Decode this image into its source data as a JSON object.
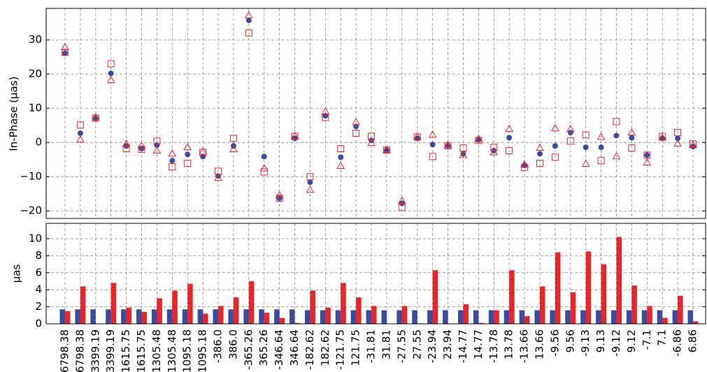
{
  "chart_data": [
    {
      "type": "scatter",
      "y_label": "In-Phase (μas)",
      "grid": true,
      "ylim": [
        -22.2,
        39.2
      ],
      "yticks": [
        {
          "value": -20,
          "label": "−20"
        },
        {
          "value": -10,
          "label": "−10"
        },
        0,
        10,
        20,
        30
      ],
      "series": [
        {
          "marker": "circle",
          "color": "#3a4ba0",
          "values": [
            26.1,
            2.7,
            7.1,
            20.2,
            -1,
            -1.8,
            -0.8,
            -5.3,
            -3.5,
            -4.1,
            -9.8,
            -1,
            35.7,
            -4.1,
            -16.3,
            1.2,
            -11.6,
            7.8,
            -4.3,
            4.7,
            0.6,
            -2.2,
            -17.8,
            1.2,
            -0.6,
            -1,
            -3.3,
            0.8,
            -2.4,
            1.4,
            -6.7,
            -3.3,
            -1,
            2.9,
            -1.4,
            -1.4,
            2,
            1.4,
            -3.7,
            1.2,
            1.2,
            -1.2
          ]
        },
        {
          "marker": "square",
          "color": "#e8262a",
          "values": [
            26.3,
            5.1,
            7.1,
            23,
            -1.8,
            -2,
            0.4,
            -7.1,
            -6.1,
            -2.9,
            -8.4,
            1.2,
            32,
            -8.6,
            -16.3,
            1.8,
            -10,
            7.3,
            -1.8,
            2.7,
            1.8,
            -2.2,
            -19,
            1.6,
            -4.1,
            -1,
            -1.6,
            0.6,
            -1.4,
            -2.4,
            -7.3,
            -6.1,
            -4.3,
            0.4,
            2.2,
            -5.3,
            6.1,
            -1.6,
            -3.7,
            1.8,
            2.9,
            -0.4
          ]
        },
        {
          "marker": "triangle",
          "color": "#e8262a",
          "values": [
            27.8,
            0.8,
            7.3,
            18.2,
            -0.4,
            -1,
            -2.4,
            -3.3,
            -1.4,
            -2.7,
            -10.4,
            -2,
            37.1,
            -7.6,
            -15.5,
            1.8,
            -13.9,
            9,
            -6.9,
            5.9,
            -0.2,
            -2.2,
            -17.1,
            1.6,
            2.2,
            -0.8,
            -3.7,
            1,
            -2.9,
            3.9,
            -6.5,
            -1.6,
            4.1,
            3.9,
            -6.3,
            1.6,
            -4.1,
            2.9,
            -5.9,
            1.4,
            -0.4,
            -0.8
          ]
        }
      ]
    },
    {
      "type": "bar",
      "y_label": "μas",
      "grid": true,
      "ylim": [
        0,
        11.8
      ],
      "yticks": [
        0,
        2,
        4,
        6,
        8,
        10
      ],
      "categories": [
        "6798.38",
        "6798.38",
        "3399.19",
        "3399.19",
        "1615.75",
        "1615.75",
        "1305.48",
        "1305.48",
        "1095.18",
        "1095.18",
        "-386.0",
        "386.0",
        "-365.26",
        "365.26",
        "-346.64",
        "346.64",
        "-182.62",
        "182.62",
        "-121.75",
        "121.75",
        "-31.81",
        "31.81",
        "-27.55",
        "27.55",
        "-23.94",
        "23.94",
        "-14.77",
        "14.77",
        "-13.78",
        "13.78",
        "-13.66",
        "13.66",
        "-9.56",
        "9.56",
        "-9.13",
        "9.13",
        "-9.12",
        "9.12",
        "-7.1",
        "7.1",
        "-6.86",
        "6.86"
      ],
      "series": [
        {
          "color": "#3a4ba0",
          "values": [
            1.7,
            1.7,
            1.7,
            1.7,
            1.7,
            1.7,
            1.7,
            1.7,
            1.7,
            1.7,
            1.7,
            1.7,
            1.7,
            1.7,
            1.7,
            1.7,
            1.6,
            1.6,
            1.6,
            1.6,
            1.6,
            1.6,
            1.6,
            1.6,
            1.6,
            1.6,
            1.6,
            1.6,
            1.6,
            1.6,
            1.6,
            1.6,
            1.6,
            1.6,
            1.6,
            1.6,
            1.6,
            1.6,
            1.6,
            1.6,
            1.6,
            1.6
          ]
        },
        {
          "color": "#e8262a",
          "values": [
            1.5,
            4.4,
            0,
            4.8,
            1.9,
            1.4,
            3.0,
            3.9,
            4.7,
            1.2,
            2.1,
            3.1,
            5.0,
            1.3,
            0.7,
            0.1,
            3.9,
            1.9,
            4.8,
            3.1,
            2.1,
            0,
            2.1,
            0.05,
            6.3,
            0,
            2.3,
            0.1,
            1.6,
            6.3,
            0.9,
            4.4,
            8.4,
            3.7,
            8.5,
            7.0,
            10.2,
            4.5,
            2.1,
            0.7,
            3.3,
            0.3
          ]
        }
      ]
    }
  ]
}
